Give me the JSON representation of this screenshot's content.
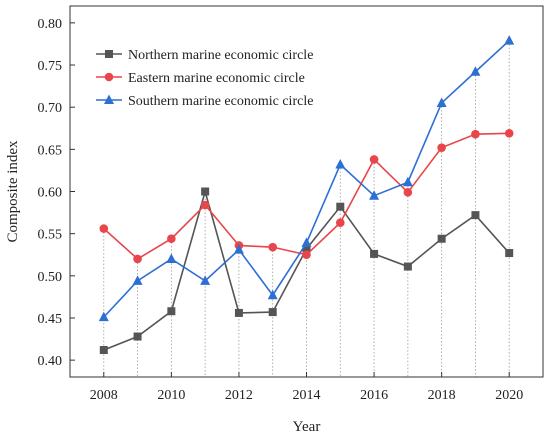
{
  "chart_data": {
    "type": "line",
    "xlabel": "Year",
    "ylabel": "Composite index",
    "xlim": [
      2007,
      2021
    ],
    "ylim": [
      0.38,
      0.82
    ],
    "x_ticks": [
      2008,
      2010,
      2012,
      2014,
      2016,
      2018,
      2020
    ],
    "y_ticks": [
      0.4,
      0.45,
      0.5,
      0.55,
      0.6,
      0.65,
      0.7,
      0.75,
      0.8
    ],
    "x": [
      2008,
      2009,
      2010,
      2011,
      2012,
      2013,
      2014,
      2015,
      2016,
      2017,
      2018,
      2019,
      2020
    ],
    "legend_position": "top-left",
    "drop_lines": "dotted vertical lines from the highest value each year to the x axis",
    "series": [
      {
        "name": "Northern marine economic circle",
        "color": "#555555",
        "marker": "square",
        "values": [
          0.412,
          0.428,
          0.458,
          0.6,
          0.456,
          0.457,
          0.532,
          0.582,
          0.526,
          0.511,
          0.544,
          0.572,
          0.527
        ]
      },
      {
        "name": "Eastern marine economic circle",
        "color": "#e8464a",
        "marker": "circle",
        "values": [
          0.556,
          0.52,
          0.544,
          0.584,
          0.536,
          0.534,
          0.525,
          0.563,
          0.638,
          0.599,
          0.652,
          0.668,
          0.669
        ]
      },
      {
        "name": "Southern marine economic circle",
        "color": "#2d6fd3",
        "marker": "triangle",
        "values": [
          0.451,
          0.494,
          0.52,
          0.494,
          0.531,
          0.477,
          0.539,
          0.632,
          0.595,
          0.611,
          0.705,
          0.742,
          0.779
        ]
      }
    ]
  }
}
